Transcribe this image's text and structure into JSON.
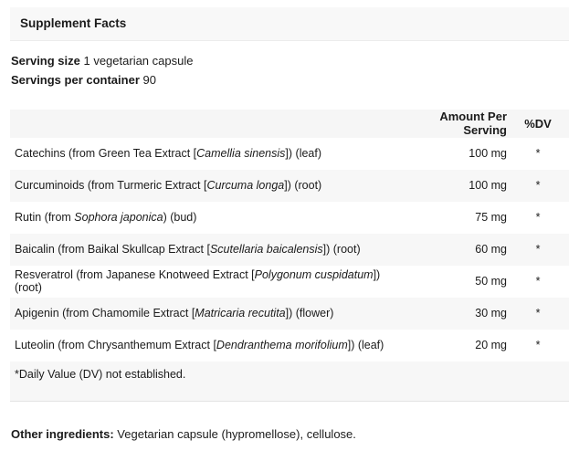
{
  "title": "Supplement Facts",
  "serving": {
    "size_label": "Serving size",
    "size_value": " 1 vegetarian capsule",
    "container_label": "Servings per container",
    "container_value": " 90"
  },
  "table": {
    "amount_header": "Amount Per Serving",
    "dv_header": "%DV",
    "rows": [
      {
        "pre": "Catechins (from Green Tea Extract [",
        "sci": "Camellia sinensis",
        "post": "]) (leaf)",
        "amount": "100 mg",
        "dv": "*"
      },
      {
        "pre": "Curcuminoids (from Turmeric Extract [",
        "sci": "Curcuma longa",
        "post": "]) (root)",
        "amount": "100 mg",
        "dv": "*"
      },
      {
        "pre": "Rutin (from ",
        "sci": "Sophora japonica",
        "post": ") (bud)",
        "amount": "75 mg",
        "dv": "*"
      },
      {
        "pre": "Baicalin (from Baikal Skullcap Extract [",
        "sci": "Scutellaria baicalensis",
        "post": "]) (root)",
        "amount": "60 mg",
        "dv": "*"
      },
      {
        "pre": "Resveratrol (from Japanese Knotweed Extract [",
        "sci": "Polygonum cuspidatum",
        "post": "]) (root)",
        "amount": "50 mg",
        "dv": "*"
      },
      {
        "pre": "Apigenin (from Chamomile Extract [",
        "sci": "Matricaria recutita",
        "post": "]) (flower)",
        "amount": "30 mg",
        "dv": "*"
      },
      {
        "pre": "Luteolin (from Chrysanthemum Extract [",
        "sci": "Dendranthema morifolium",
        "post": "]) (leaf)",
        "amount": "20 mg",
        "dv": "*"
      }
    ],
    "footnote": "*Daily Value (DV) not established."
  },
  "other_ingredients": {
    "label": "Other ingredients:",
    "text": " Vegetarian capsule (hypromellose), cellulose."
  },
  "colors": {
    "stripe": "#f7f7f7",
    "header_band": "#f8f8f8",
    "text": "#1b1b1b",
    "border": "#e3e3e3"
  }
}
